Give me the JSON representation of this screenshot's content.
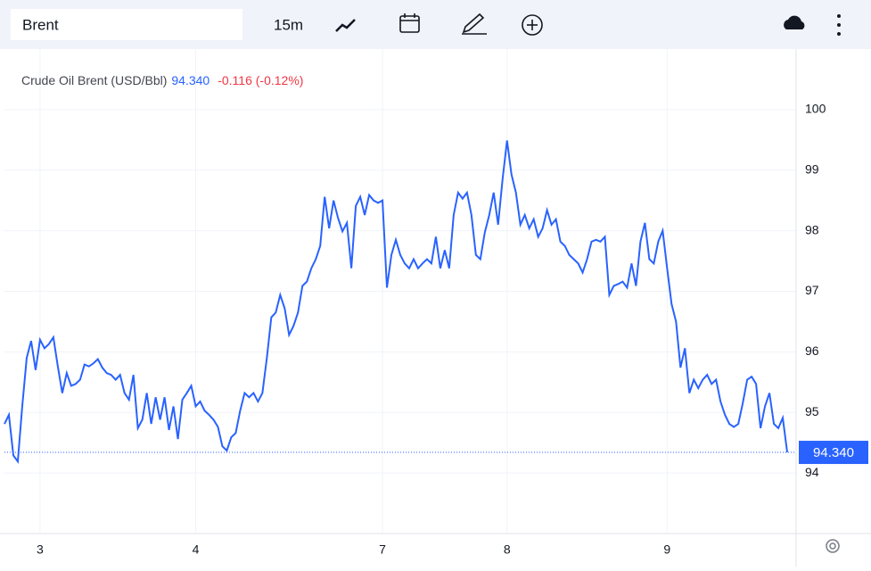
{
  "toolbar": {
    "symbol": "Brent",
    "interval": "15m"
  },
  "chart_data": {
    "type": "line",
    "title": "Crude Oil Brent (USD/Bbl)",
    "last_value": {
      "value": 94.34,
      "label": "94.340"
    },
    "change": "-0.116 (-0.12%)",
    "series": [
      {
        "name": "Crude Oil Brent",
        "color": "#2962ff",
        "values": [
          94.81,
          94.96,
          94.29,
          94.19,
          95.1,
          95.9,
          96.18,
          95.7,
          96.2,
          96.06,
          96.13,
          96.24,
          95.76,
          95.32,
          95.65,
          95.44,
          95.47,
          95.54,
          95.79,
          95.76,
          95.81,
          95.88,
          95.74,
          95.65,
          95.62,
          95.54,
          95.62,
          95.32,
          95.21,
          95.62,
          94.74,
          94.88,
          95.32,
          94.81,
          95.25,
          94.88,
          95.25,
          94.71,
          95.1,
          94.56,
          95.21,
          95.32,
          95.44,
          95.1,
          95.18,
          95.03,
          94.96,
          94.88,
          94.76,
          94.44,
          94.37,
          94.59,
          94.66,
          95.03,
          95.32,
          95.25,
          95.32,
          95.18,
          95.32,
          95.9,
          96.57,
          96.65,
          96.94,
          96.72,
          96.28,
          96.43,
          96.65,
          97.09,
          97.16,
          97.38,
          97.53,
          97.75,
          98.56,
          98.04,
          98.5,
          98.21,
          97.99,
          98.13,
          97.38,
          98.41,
          98.56,
          98.26,
          98.59,
          98.5,
          98.46,
          98.5,
          97.06,
          97.6,
          97.85,
          97.6,
          97.46,
          97.38,
          97.53,
          97.38,
          97.46,
          97.53,
          97.46,
          97.9,
          97.38,
          97.68,
          97.38,
          98.26,
          98.63,
          98.53,
          98.63,
          98.26,
          97.6,
          97.53,
          97.97,
          98.26,
          98.63,
          98.1,
          98.85,
          99.49,
          98.93,
          98.63,
          98.1,
          98.26,
          98.04,
          98.19,
          97.9,
          98.04,
          98.34,
          98.1,
          98.19,
          97.82,
          97.75,
          97.6,
          97.53,
          97.46,
          97.31,
          97.53,
          97.82,
          97.85,
          97.82,
          97.9,
          96.94,
          97.09,
          97.12,
          97.16,
          97.06,
          97.46,
          97.09,
          97.82,
          98.13,
          97.53,
          97.46,
          97.82,
          98.0,
          97.38,
          96.79,
          96.5,
          95.74,
          96.06,
          95.32,
          95.54,
          95.4,
          95.54,
          95.62,
          95.47,
          95.54,
          95.18,
          94.96,
          94.81,
          94.76,
          94.81,
          95.15,
          95.54,
          95.59,
          95.47,
          94.74,
          95.1,
          95.32,
          94.81,
          94.74,
          94.91,
          94.34
        ]
      }
    ],
    "xlim": [
      0,
      178
    ],
    "xticks": [
      {
        "value": 8,
        "label": "3"
      },
      {
        "value": 43,
        "label": "4"
      },
      {
        "value": 85,
        "label": "7"
      },
      {
        "value": 113,
        "label": "8"
      },
      {
        "value": 149,
        "label": "9"
      }
    ],
    "ylim": [
      93,
      101
    ],
    "yticks": [
      94,
      95,
      96,
      97,
      98,
      99,
      100
    ],
    "grid": true
  }
}
